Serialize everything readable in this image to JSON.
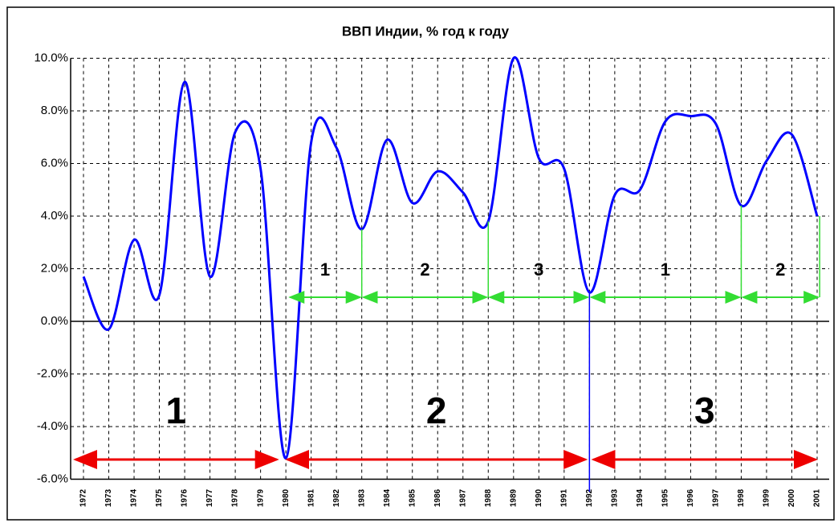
{
  "chart_data": {
    "type": "line",
    "title": "ВВП Индии, % год к году",
    "categories": [
      "1972",
      "1973",
      "1974",
      "1975",
      "1976",
      "1977",
      "1978",
      "1979",
      "1980",
      "1981",
      "1982",
      "1983",
      "1984",
      "1985",
      "1986",
      "1987",
      "1988",
      "1989",
      "1990",
      "1991",
      "1992",
      "1993",
      "1994",
      "1995",
      "1996",
      "1997",
      "1998",
      "1999",
      "2000",
      "2001"
    ],
    "series": [
      {
        "color": "#0000ff",
        "values": [
          1.7,
          -0.3,
          3.1,
          1.0,
          9.1,
          1.7,
          7.2,
          5.8,
          -5.2,
          6.8,
          6.6,
          3.5,
          6.9,
          4.5,
          5.7,
          4.9,
          3.8,
          10.0,
          6.2,
          5.8,
          1.1,
          4.8,
          5.0,
          7.6,
          7.8,
          7.5,
          4.4,
          6.1,
          7.1,
          4.0
        ]
      }
    ],
    "ylim": [
      -6,
      10
    ],
    "yticks": [
      {
        "value": -6,
        "label": "-6.0%"
      },
      {
        "value": -4,
        "label": "-4.0%"
      },
      {
        "value": -2,
        "label": "-2.0%"
      },
      {
        "value": 0,
        "label": "0.0%"
      },
      {
        "value": 2,
        "label": "2.0%"
      },
      {
        "value": 4,
        "label": "4.0%"
      },
      {
        "value": 6,
        "label": "6.0%"
      },
      {
        "value": 8,
        "label": "8.0%"
      },
      {
        "value": 10,
        "label": "10.0%"
      }
    ],
    "grid": true,
    "annotations": {
      "green": [
        "1",
        "2",
        "3",
        "1",
        "2"
      ],
      "red": [
        "1",
        "2",
        "3"
      ]
    }
  }
}
